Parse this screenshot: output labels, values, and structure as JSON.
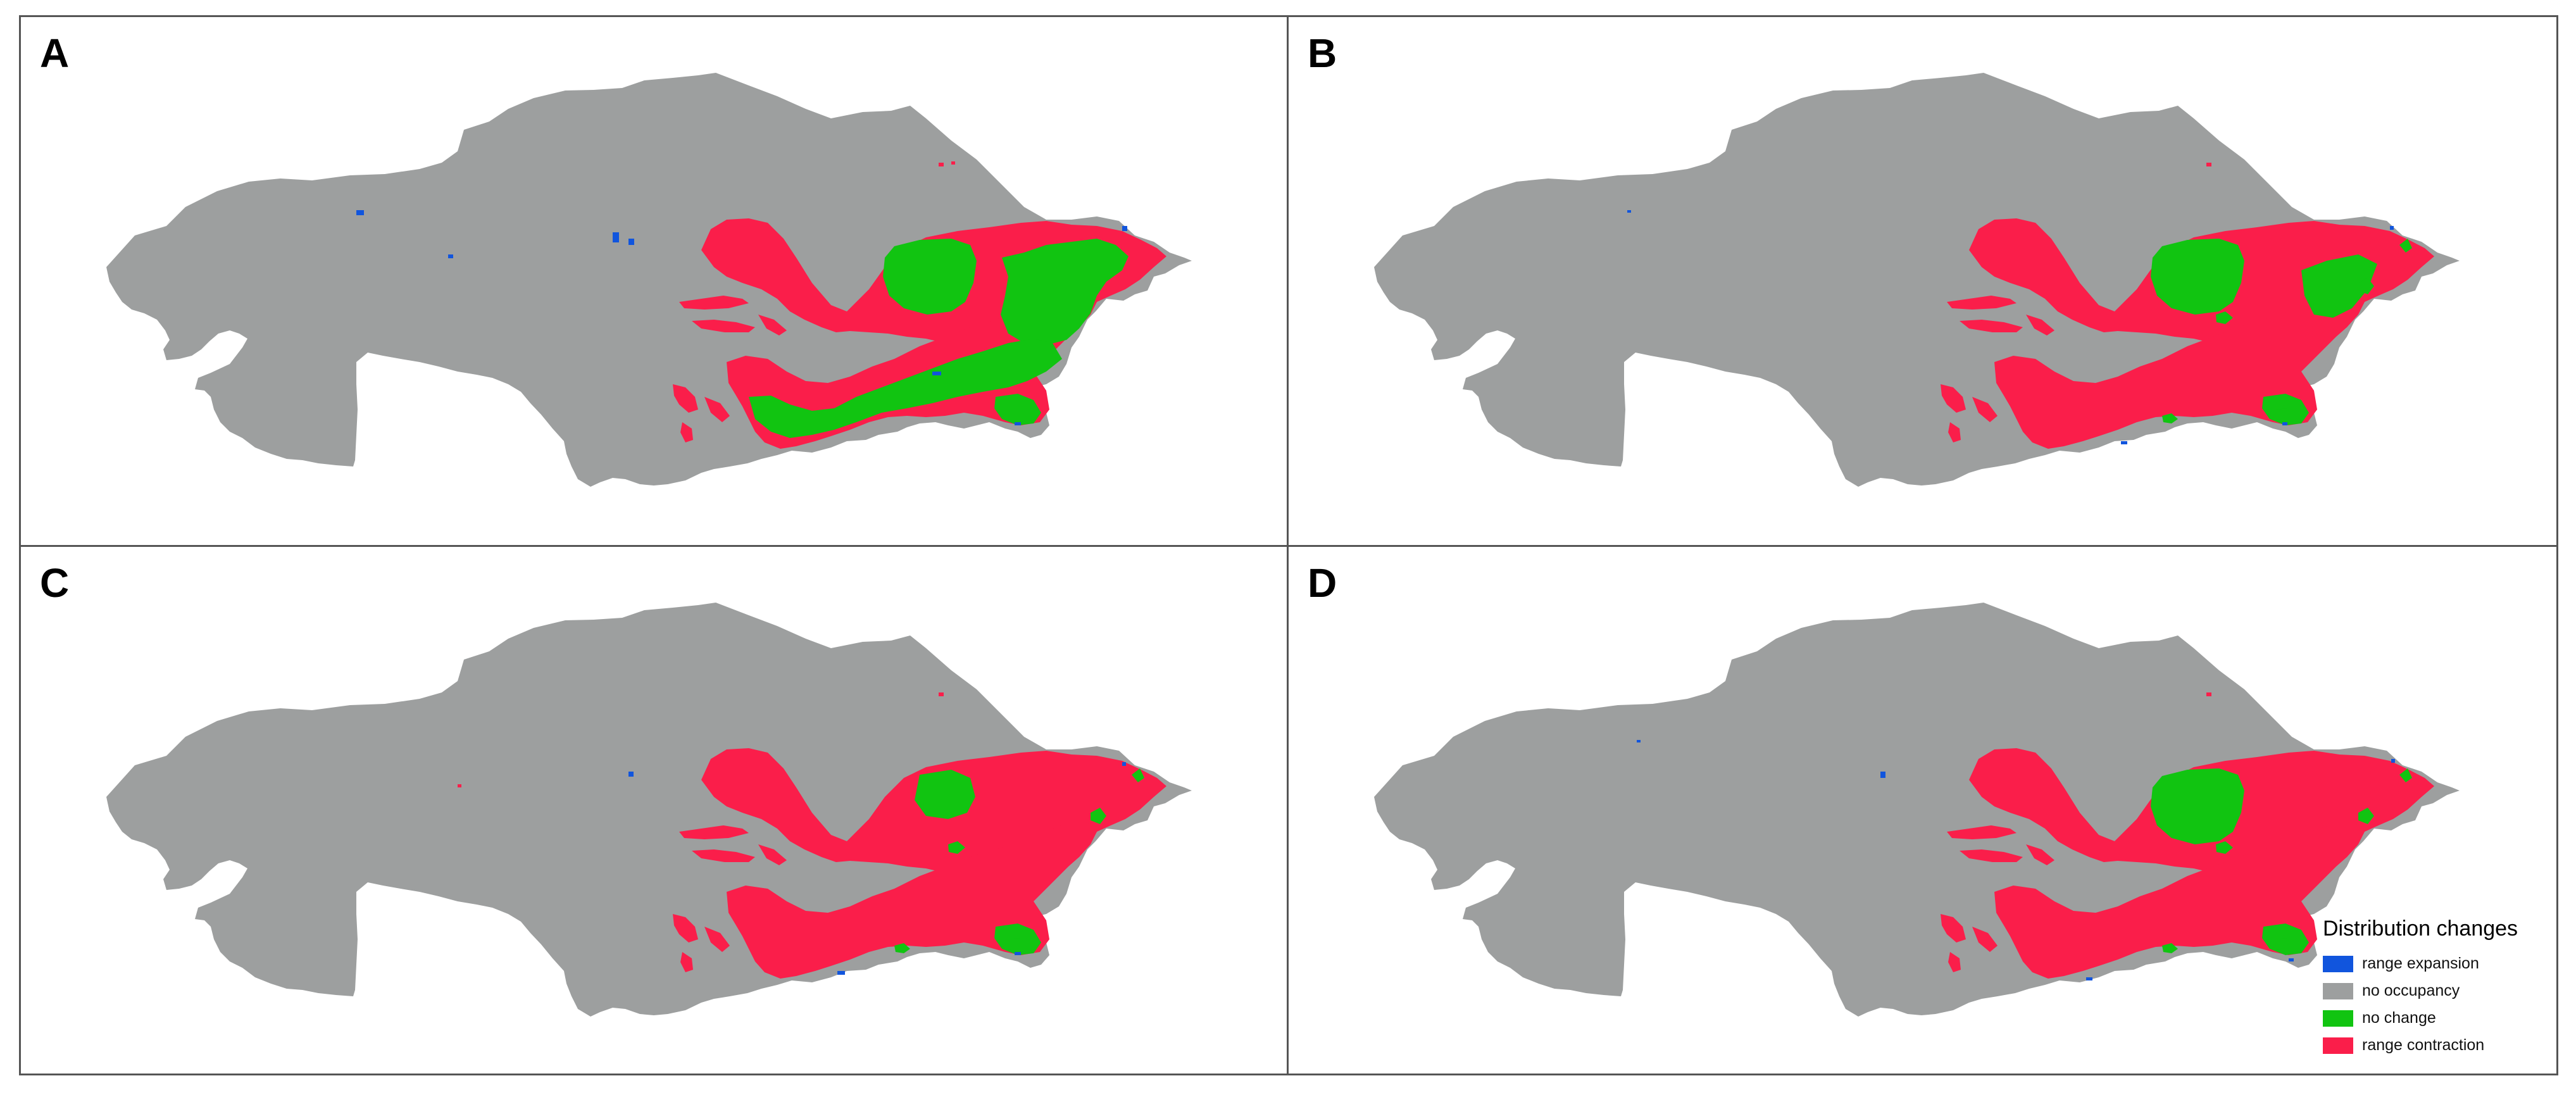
{
  "panels": [
    {
      "label": "A",
      "scenario": "a"
    },
    {
      "label": "B",
      "scenario": "b"
    },
    {
      "label": "C",
      "scenario": "c"
    },
    {
      "label": "D",
      "scenario": "d"
    }
  ],
  "legend": {
    "title": "Distribution changes",
    "items": [
      {
        "label": "range expansion",
        "color": "#1155dd"
      },
      {
        "label": "no occupancy",
        "color": "#9d9f9f"
      },
      {
        "label": "no change",
        "color": "#11c411"
      },
      {
        "label": "range contraction",
        "color": "#fa1e4a"
      }
    ]
  },
  "colors": {
    "frame": "#555555",
    "country": "#9d9f9f",
    "contraction": "#fa1e4a",
    "no_change": "#11c411",
    "expansion": "#1155dd"
  }
}
